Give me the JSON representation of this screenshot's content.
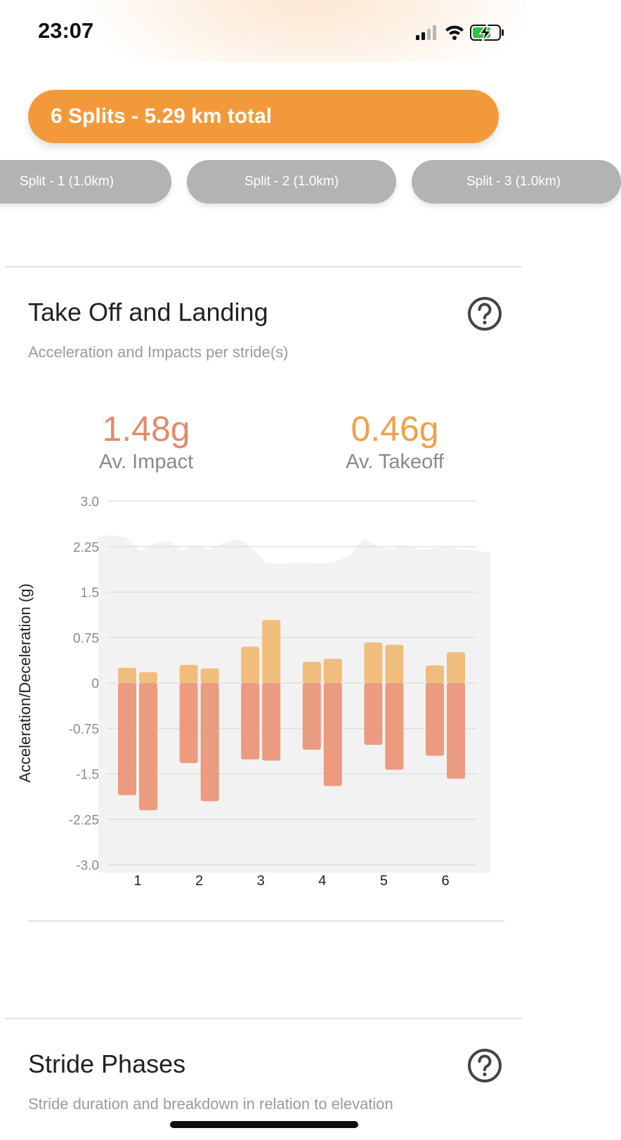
{
  "status_bar": {
    "time": "23:07"
  },
  "summary": {
    "label": "6 Splits - 5.29 km total"
  },
  "splits": [
    {
      "label": "Split - 1 (1.0km)"
    },
    {
      "label": "Split - 2 (1.0km)"
    },
    {
      "label": "Split - 3 (1.0km)"
    }
  ],
  "take_off_landing": {
    "title": "Take Off and Landing",
    "subtitle": "Acceleration and Impacts per stride(s)",
    "impact": {
      "value": "1.48g",
      "label": "Av. Impact"
    },
    "takeoff": {
      "value": "0.46g",
      "label": "Av. Takeoff"
    }
  },
  "stride_phases": {
    "title": "Stride Phases",
    "subtitle": "Stride duration and breakdown in relation to elevation"
  },
  "colors": {
    "accent": "#f29a3b",
    "impact": "#e08b6d",
    "takeoff": "#f0a04b",
    "bar_positive": "#efbe7c",
    "bar_negative": "#eb9b80",
    "split_pill": "#b1b4b3"
  },
  "chart_data": {
    "type": "bar",
    "ylabel": "Acceleration/Deceleration (g)",
    "ylim": [
      -3.0,
      3.0
    ],
    "yticks": [
      "3.0",
      "2.25",
      "1.5",
      "0.75",
      "0",
      "-0.75",
      "-1.5",
      "-2.25",
      "-3.0"
    ],
    "ytick_values": [
      3.0,
      2.25,
      1.5,
      0.75,
      0,
      -0.75,
      -1.5,
      -2.25,
      -3.0
    ],
    "categories": [
      "1",
      "2",
      "3",
      "4",
      "5",
      "6"
    ],
    "series": [
      {
        "values": [
          [
            0.25,
            0.18
          ],
          [
            0.3,
            0.24
          ],
          [
            0.6,
            1.04
          ],
          [
            0.35,
            0.4
          ],
          [
            0.67,
            0.63
          ],
          [
            0.29,
            0.51
          ]
        ]
      },
      {
        "values": [
          [
            -1.85,
            -2.1
          ],
          [
            -1.32,
            -1.95
          ],
          [
            -1.26,
            -1.28
          ],
          [
            -1.1,
            -1.7
          ],
          [
            -1.02,
            -1.43
          ],
          [
            -1.2,
            -1.58
          ]
        ]
      }
    ],
    "background_profile": [
      2.42,
      2.44,
      2.4,
      2.18,
      2.3,
      2.35,
      2.18,
      2.28,
      2.2,
      2.32,
      2.38,
      2.22,
      1.98,
      1.97,
      1.98,
      1.98,
      1.97,
      2.0,
      2.12,
      2.38,
      2.25,
      2.2,
      2.28,
      2.2,
      2.22,
      2.25,
      2.2,
      2.18,
      2.15
    ]
  }
}
